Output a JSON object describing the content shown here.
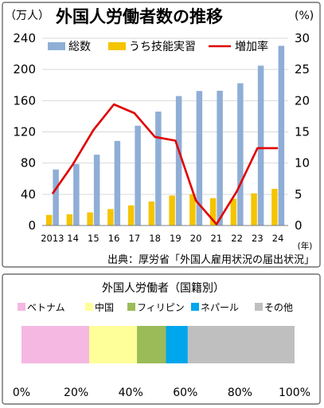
{
  "chart_data": [
    {
      "type": "bar+line",
      "title": "外国人労働者数の推移",
      "y_left_unit": "（万人）",
      "y_right_unit": "(%)",
      "x_unit": "(年)",
      "source": "出典：厚労省「外国人雇用状況の届出状況」",
      "categories": [
        "2013",
        "14",
        "15",
        "16",
        "17",
        "18",
        "19",
        "20",
        "21",
        "22",
        "23",
        "24"
      ],
      "y_left": {
        "min": 0,
        "max": 240,
        "ticks": [
          "0",
          "40",
          "80",
          "120",
          "160",
          "200",
          "240"
        ]
      },
      "y_right": {
        "min": 0,
        "max": 30,
        "ticks": [
          "0",
          "5",
          "10",
          "15",
          "20",
          "25",
          "30"
        ]
      },
      "grid": true,
      "legend_position": "top",
      "series": [
        {
          "name": "総数",
          "kind": "bar",
          "axis": "left",
          "color": "#8faed6",
          "values": [
            71.8,
            78.8,
            90.8,
            108.4,
            127.9,
            146.0,
            165.9,
            172.4,
            172.7,
            182.3,
            204.9,
            230.3
          ]
        },
        {
          "name": "うち技能実習",
          "kind": "bar",
          "axis": "left",
          "color": "#f5c400",
          "values": [
            13.6,
            14.5,
            16.8,
            21.1,
            25.8,
            30.8,
            38.4,
            40.2,
            35.1,
            34.3,
            41.2,
            47.0
          ]
        },
        {
          "name": "増加率",
          "kind": "line",
          "axis": "right",
          "color": "#e00000",
          "values": [
            5.1,
            9.8,
            15.3,
            19.4,
            18.0,
            14.2,
            13.6,
            4.0,
            0.2,
            5.5,
            12.4,
            12.4
          ]
        }
      ]
    },
    {
      "type": "stacked-bar-100",
      "title": "外国人労働者（国籍別）",
      "x_ticks": [
        "0%",
        "20%",
        "40%",
        "60%",
        "80%",
        "100%"
      ],
      "legend_position": "top",
      "series": [
        {
          "name": "ベトナム",
          "color": "#f4b8e2",
          "value": 24.8
        },
        {
          "name": "中国",
          "color": "#ffff99",
          "value": 17.5
        },
        {
          "name": "フィリピン",
          "color": "#9bbb59",
          "value": 10.6
        },
        {
          "name": "ネパール",
          "color": "#00a6ec",
          "value": 8.0
        },
        {
          "name": "その他",
          "color": "#bfbfbf",
          "value": 39.1
        }
      ]
    }
  ]
}
